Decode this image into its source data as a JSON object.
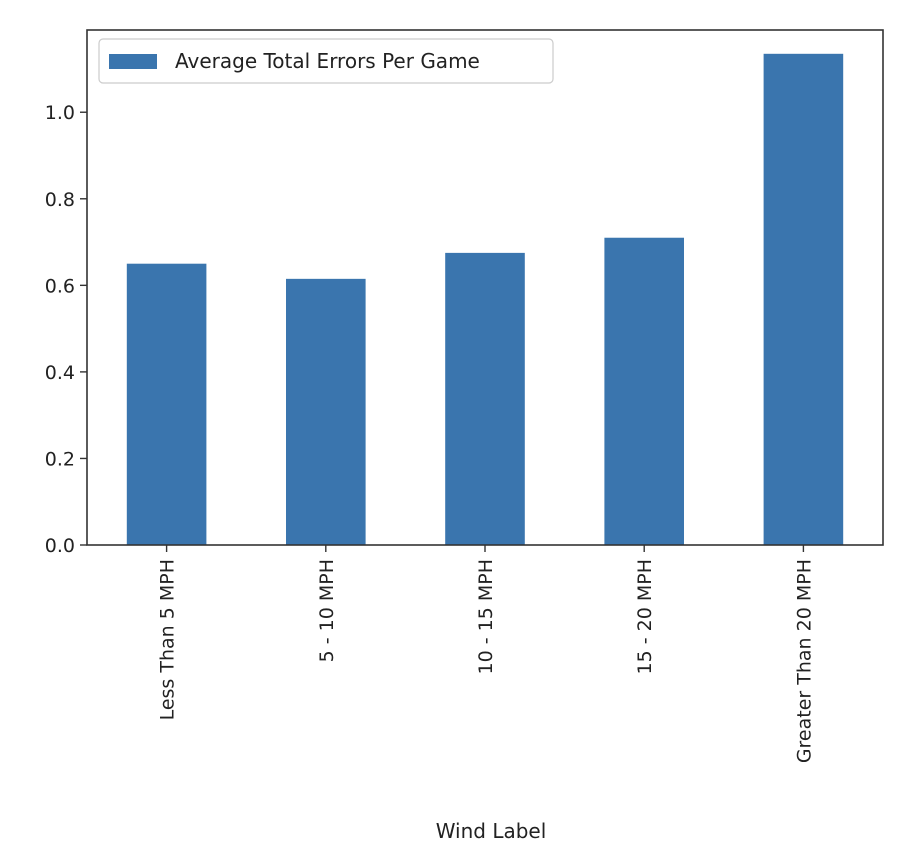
{
  "chart_data": {
    "type": "bar",
    "categories": [
      "Less Than 5 MPH",
      "5 - 10 MPH",
      "10 - 15 MPH",
      "15 - 20 MPH",
      "Greater Than 20 MPH"
    ],
    "series": [
      {
        "name": "Average Total Errors Per Game",
        "values": [
          0.65,
          0.615,
          0.675,
          0.71,
          1.135
        ]
      }
    ],
    "title": "",
    "xlabel": "Wind Label",
    "ylabel": "",
    "ylim": [
      0,
      1.19
    ],
    "yticks": [
      0.0,
      0.2,
      0.4,
      0.6,
      0.8,
      1.0
    ],
    "ytick_labels": [
      "0.0",
      "0.2",
      "0.4",
      "0.6",
      "0.8",
      "1.0"
    ],
    "grid": false,
    "legend_position": "top-left",
    "colors": {
      "bar": "#3a75ae",
      "axes": "#333333",
      "text": "#222222"
    }
  }
}
